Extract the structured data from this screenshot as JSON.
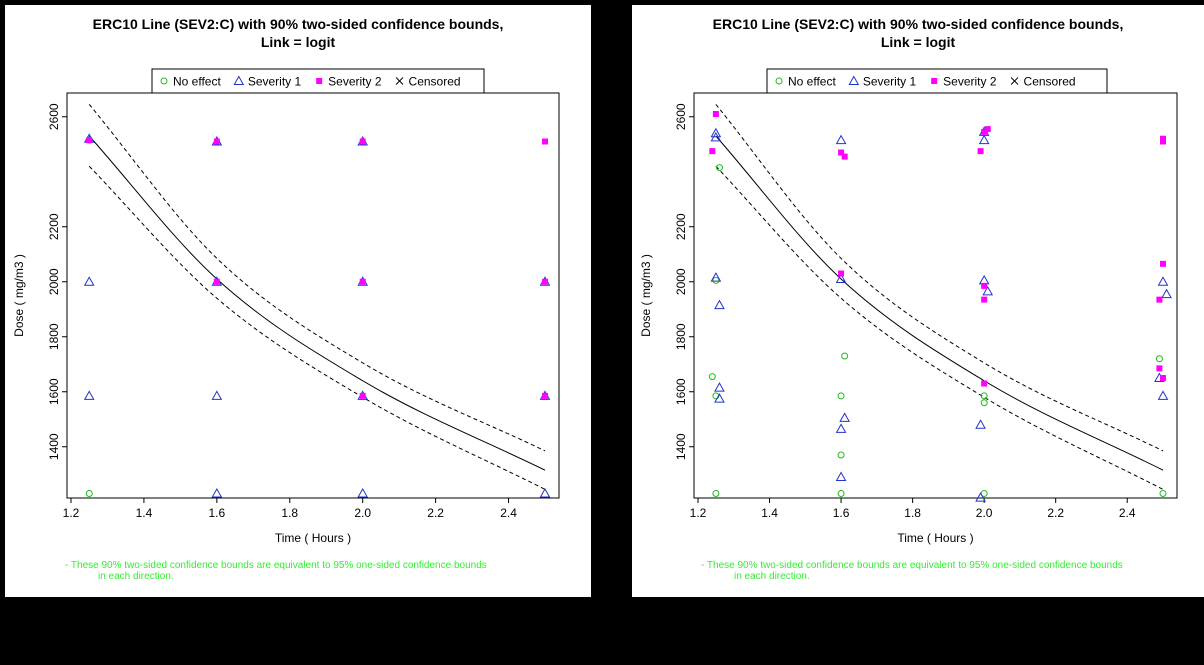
{
  "colors": {
    "no_effect": "#22bb22",
    "severity_1": "#2233cc",
    "severity_2": "#ff00ff",
    "censored": "#000000",
    "fit_line": "#000000",
    "footnote": "#33ee33",
    "background": "#000000"
  },
  "chart_data": [
    {
      "type": "scatter",
      "title_line1": "ERC10 Line (SEV2:C) with 90% two-sided confidence bounds,",
      "title_line2": "Link = logit",
      "xlabel": "Time ( Hours )",
      "ylabel": "Dose ( mg/m3 )",
      "xlim": [
        1.2,
        2.5
      ],
      "ylim": [
        1250,
        2650
      ],
      "xticks": [
        "1.2",
        "1.4",
        "1.6",
        "1.8",
        "2.0",
        "2.2",
        "2.4"
      ],
      "yticks": [
        "1400",
        "1600",
        "1800",
        "2000",
        "2200",
        "2600"
      ],
      "grid": false,
      "legend_position": "top-center",
      "legend": [
        {
          "key": "no_effect",
          "label": "No effect",
          "marker": "circle"
        },
        {
          "key": "severity_1",
          "label": "Severity 1",
          "marker": "triangle"
        },
        {
          "key": "severity_2",
          "label": "Severity 2",
          "marker": "square"
        },
        {
          "key": "censored",
          "label": "Censored",
          "marker": "x"
        }
      ],
      "points": {
        "no_effect": [
          [
            1.25,
            1230
          ],
          [
            1.25,
            2515
          ]
        ],
        "severity_1": [
          [
            1.25,
            2000
          ],
          [
            1.25,
            1585
          ],
          [
            1.6,
            1585
          ],
          [
            1.6,
            1230
          ],
          [
            2.0,
            1230
          ],
          [
            2.5,
            1230
          ],
          [
            1.25,
            2520
          ],
          [
            1.6,
            2510
          ],
          [
            2.0,
            2510
          ],
          [
            1.6,
            2000
          ],
          [
            2.0,
            2000
          ],
          [
            2.5,
            2000
          ],
          [
            2.0,
            1585
          ],
          [
            2.5,
            1585
          ]
        ],
        "severity_2": [
          [
            1.25,
            2515
          ],
          [
            1.6,
            2510
          ],
          [
            2.0,
            2510
          ],
          [
            2.5,
            2510
          ],
          [
            1.6,
            2000
          ],
          [
            2.0,
            2000
          ],
          [
            2.5,
            2000
          ],
          [
            2.0,
            1585
          ],
          [
            2.5,
            1585
          ]
        ],
        "censored": []
      },
      "fit": {
        "x": [
          1.25,
          1.6,
          2.0,
          2.5
        ],
        "y": [
          2530,
          2010,
          1640,
          1315
        ]
      },
      "lower_bound": {
        "x": [
          1.25,
          1.6,
          2.0,
          2.5
        ],
        "y": [
          2420,
          1940,
          1580,
          1245
        ]
      },
      "upper_bound": {
        "x": [
          1.25,
          1.6,
          2.0,
          2.5
        ],
        "y": [
          2645,
          2085,
          1705,
          1385
        ]
      },
      "footnote_line1": "- These 90% two-sided confidence bounds are equivalent to 95% one-sided confidence bounds",
      "footnote_line2": "in each direction."
    },
    {
      "type": "scatter",
      "title_line1": "ERC10 Line (SEV2:C) with 90% two-sided confidence bounds,",
      "title_line2": "Link = logit",
      "xlabel": "Time ( Hours )",
      "ylabel": "Dose ( mg/m3 )",
      "xlim": [
        1.2,
        2.5
      ],
      "ylim": [
        1250,
        2650
      ],
      "xticks": [
        "1.2",
        "1.4",
        "1.6",
        "1.8",
        "2.0",
        "2.2",
        "2.4"
      ],
      "yticks": [
        "1400",
        "1600",
        "1800",
        "2000",
        "2200",
        "2600"
      ],
      "grid": false,
      "legend_position": "top-center",
      "legend": [
        {
          "key": "no_effect",
          "label": "No effect",
          "marker": "circle"
        },
        {
          "key": "severity_1",
          "label": "Severity 1",
          "marker": "triangle"
        },
        {
          "key": "severity_2",
          "label": "Severity 2",
          "marker": "square"
        },
        {
          "key": "censored",
          "label": "Censored",
          "marker": "x"
        }
      ],
      "points": {
        "no_effect": [
          [
            1.25,
            1230
          ],
          [
            1.24,
            1655
          ],
          [
            1.25,
            1585
          ],
          [
            1.25,
            2005
          ],
          [
            1.26,
            2415
          ],
          [
            1.6,
            1230
          ],
          [
            1.6,
            1370
          ],
          [
            1.6,
            1585
          ],
          [
            1.61,
            1730
          ],
          [
            2.0,
            1230
          ],
          [
            2.0,
            1560
          ],
          [
            2.0,
            1585
          ],
          [
            2.5,
            1230
          ],
          [
            2.49,
            1720
          ]
        ],
        "severity_1": [
          [
            1.25,
            2540
          ],
          [
            1.25,
            2525
          ],
          [
            1.25,
            2015
          ],
          [
            1.26,
            1915
          ],
          [
            1.26,
            1615
          ],
          [
            1.26,
            1575
          ],
          [
            1.6,
            2515
          ],
          [
            1.6,
            2010
          ],
          [
            1.6,
            1465
          ],
          [
            1.61,
            1505
          ],
          [
            1.6,
            1290
          ],
          [
            1.99,
            1480
          ],
          [
            1.99,
            1215
          ],
          [
            2.0,
            2545
          ],
          [
            2.0,
            2515
          ],
          [
            2.0,
            2005
          ],
          [
            2.01,
            1965
          ],
          [
            2.49,
            1650
          ],
          [
            2.5,
            1585
          ],
          [
            2.5,
            2000
          ],
          [
            2.51,
            1955
          ]
        ],
        "severity_2": [
          [
            1.25,
            2610
          ],
          [
            1.24,
            2475
          ],
          [
            1.6,
            2470
          ],
          [
            1.61,
            2455
          ],
          [
            1.6,
            2030
          ],
          [
            1.99,
            2475
          ],
          [
            2.0,
            2545
          ],
          [
            2.01,
            2555
          ],
          [
            2.0,
            1985
          ],
          [
            2.0,
            1935
          ],
          [
            2.0,
            1630
          ],
          [
            2.5,
            2520
          ],
          [
            2.5,
            2510
          ],
          [
            2.5,
            2065
          ],
          [
            2.49,
            1935
          ],
          [
            2.49,
            1685
          ],
          [
            2.5,
            1650
          ]
        ],
        "censored": []
      },
      "fit": {
        "x": [
          1.25,
          1.6,
          2.0,
          2.5
        ],
        "y": [
          2530,
          2010,
          1640,
          1315
        ]
      },
      "lower_bound": {
        "x": [
          1.25,
          1.6,
          2.0,
          2.5
        ],
        "y": [
          2420,
          1940,
          1580,
          1245
        ]
      },
      "upper_bound": {
        "x": [
          1.25,
          1.6,
          2.0,
          2.5
        ],
        "y": [
          2645,
          2085,
          1705,
          1385
        ]
      },
      "footnote_line1": "- These 90% two-sided confidence bounds are equivalent to 95% one-sided confidence bounds",
      "footnote_line2": "in each direction."
    }
  ]
}
